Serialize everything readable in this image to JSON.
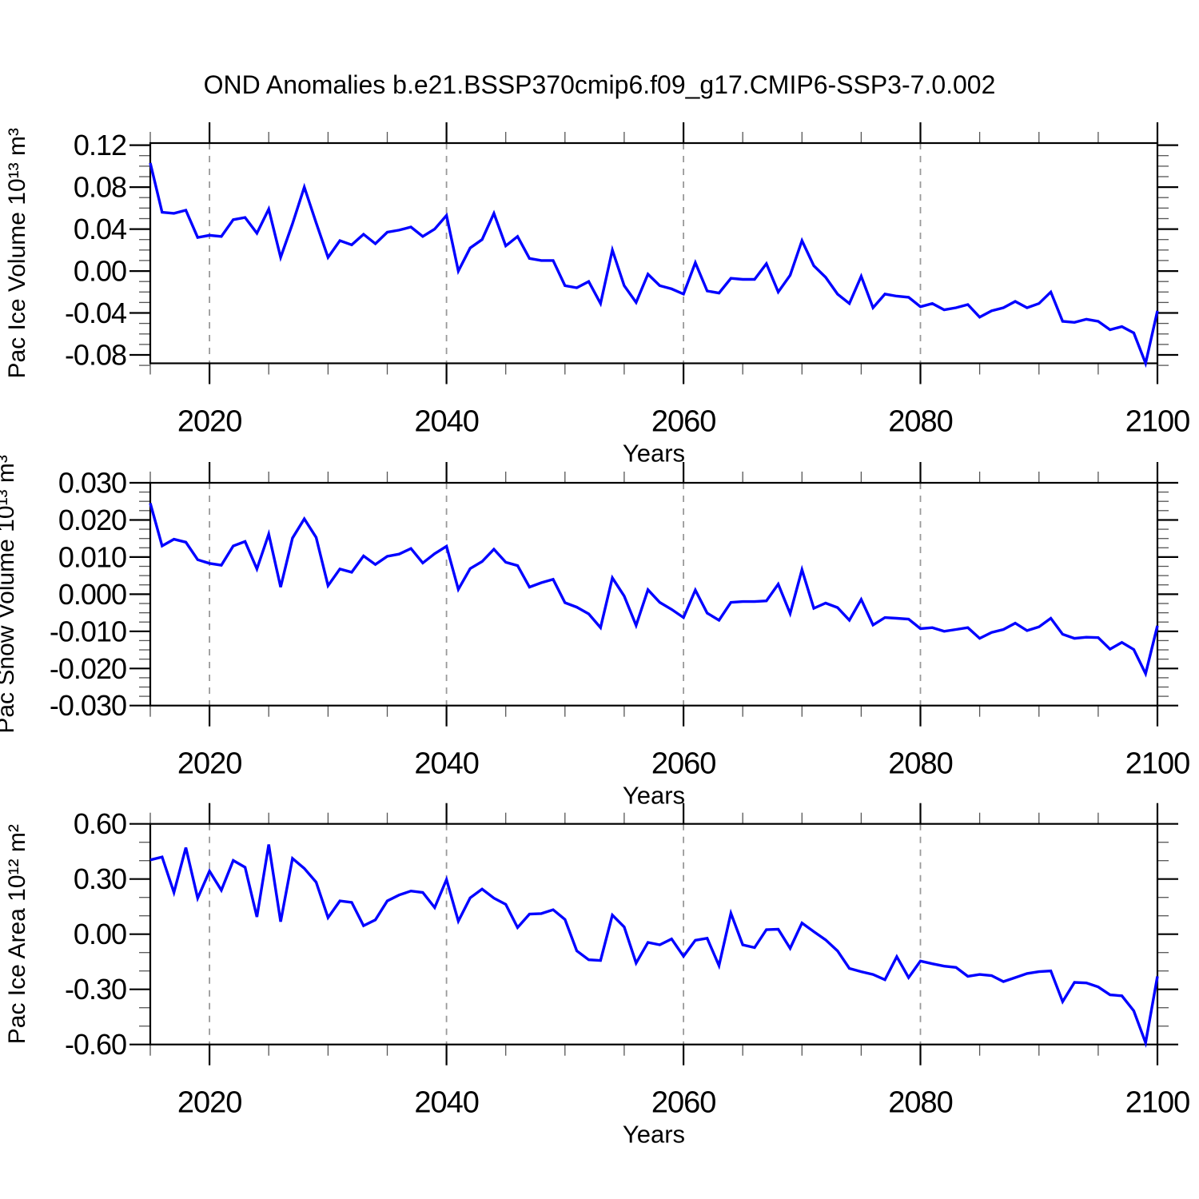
{
  "title": "OND Anomalies b.e21.BSSP370cmip6.f09_g17.CMIP6-SSP3-7.0.002",
  "colors": {
    "line": "#0000ff",
    "axis": "#000000",
    "major_tick": "#000000",
    "minor_tick": "#555555",
    "grid": "#999999",
    "background": "#ffffff",
    "text": "#000000"
  },
  "x_axis": {
    "label": "Years",
    "start": 2015,
    "end": 2100,
    "major_ticks": [
      2020,
      2040,
      2060,
      2080,
      2100
    ],
    "major_labels": [
      "2020",
      "2040",
      "2060",
      "2080",
      "2100"
    ],
    "minor_step": 5,
    "grid_years": [
      2020,
      2040,
      2060,
      2080
    ]
  },
  "chart_data": [
    {
      "type": "line",
      "series_name": "pac-ice-volume-anomaly",
      "ylabel": "Pac Ice Volume 10¹³ m³",
      "xlabel": "Years",
      "ylim": [
        -0.088,
        0.122
      ],
      "y_major_ticks": [
        -0.08,
        -0.04,
        0.0,
        0.04,
        0.08,
        0.12
      ],
      "y_major_labels": [
        "-0.08",
        "-0.04",
        "0.00",
        "0.04",
        "0.08",
        "0.12"
      ],
      "y_minor_step": 0.01,
      "x_start": 2015,
      "x_step": 1,
      "values": [
        0.103,
        0.056,
        0.055,
        0.058,
        0.032,
        0.034,
        0.033,
        0.049,
        0.051,
        0.036,
        0.059,
        0.013,
        0.045,
        0.08,
        0.046,
        0.013,
        0.029,
        0.025,
        0.035,
        0.026,
        0.037,
        0.039,
        0.042,
        0.033,
        0.04,
        0.053,
        0.0,
        0.022,
        0.03,
        0.055,
        0.024,
        0.033,
        0.012,
        0.01,
        0.01,
        -0.014,
        -0.016,
        -0.01,
        -0.031,
        0.02,
        -0.014,
        -0.03,
        -0.003,
        -0.014,
        -0.017,
        -0.022,
        0.008,
        -0.019,
        -0.021,
        -0.007,
        -0.008,
        -0.008,
        0.007,
        -0.02,
        -0.004,
        0.029,
        0.005,
        -0.006,
        -0.022,
        -0.031,
        -0.005,
        -0.035,
        -0.022,
        -0.024,
        -0.025,
        -0.034,
        -0.031,
        -0.037,
        -0.035,
        -0.032,
        -0.044,
        -0.038,
        -0.035,
        -0.029,
        -0.035,
        -0.031,
        -0.02,
        -0.048,
        -0.049,
        -0.046,
        -0.048,
        -0.056,
        -0.053,
        -0.059,
        -0.088,
        -0.038
      ]
    },
    {
      "type": "line",
      "series_name": "pac-snow-volume-anomaly",
      "ylabel": "Pac Snow Volume 10¹³ m³",
      "xlabel": "Years",
      "ylim": [
        -0.03,
        0.03
      ],
      "y_major_ticks": [
        -0.03,
        -0.02,
        -0.01,
        0.0,
        0.01,
        0.02,
        0.03
      ],
      "y_major_labels": [
        "-0.030",
        "-0.020",
        "-0.010",
        "0.000",
        "0.010",
        "0.020",
        "0.030"
      ],
      "y_minor_step": 0.0025,
      "x_start": 2015,
      "x_step": 1,
      "values": [
        0.0245,
        0.013,
        0.0148,
        0.014,
        0.0093,
        0.0083,
        0.0078,
        0.013,
        0.0142,
        0.0068,
        0.0162,
        0.0019,
        0.0151,
        0.0203,
        0.0153,
        0.0023,
        0.0068,
        0.0059,
        0.0103,
        0.008,
        0.0102,
        0.0108,
        0.0123,
        0.0084,
        0.0109,
        0.0129,
        0.0013,
        0.0069,
        0.0088,
        0.0121,
        0.0086,
        0.0077,
        0.0019,
        0.0031,
        0.004,
        -0.0023,
        -0.0035,
        -0.0053,
        -0.009,
        0.0044,
        -0.0005,
        -0.0084,
        0.0012,
        -0.0022,
        -0.0041,
        -0.0063,
        0.0011,
        -0.0051,
        -0.007,
        -0.0022,
        -0.002,
        -0.002,
        -0.0018,
        0.0027,
        -0.0052,
        0.0066,
        -0.0038,
        -0.0024,
        -0.0036,
        -0.007,
        -0.0014,
        -0.0083,
        -0.0063,
        -0.0065,
        -0.0067,
        -0.0093,
        -0.009,
        -0.01,
        -0.0095,
        -0.009,
        -0.0119,
        -0.0103,
        -0.0095,
        -0.0078,
        -0.0098,
        -0.0088,
        -0.0065,
        -0.0108,
        -0.0119,
        -0.0116,
        -0.0117,
        -0.0148,
        -0.013,
        -0.0149,
        -0.0214,
        -0.0085
      ]
    },
    {
      "type": "line",
      "series_name": "pac-ice-area-anomaly",
      "ylabel": "Pac Ice Area 10¹² m²",
      "xlabel": "Years",
      "ylim": [
        -0.6,
        0.6
      ],
      "y_major_ticks": [
        -0.6,
        -0.3,
        0.0,
        0.3,
        0.6
      ],
      "y_major_labels": [
        "-0.60",
        "-0.30",
        "0.00",
        "0.30",
        "0.60"
      ],
      "y_minor_step": 0.1,
      "x_start": 2015,
      "x_step": 1,
      "values": [
        0.404,
        0.42,
        0.227,
        0.471,
        0.196,
        0.343,
        0.239,
        0.401,
        0.364,
        0.094,
        0.488,
        0.068,
        0.412,
        0.358,
        0.283,
        0.09,
        0.181,
        0.173,
        0.046,
        0.078,
        0.181,
        0.213,
        0.235,
        0.227,
        0.145,
        0.297,
        0.071,
        0.198,
        0.245,
        0.196,
        0.162,
        0.036,
        0.109,
        0.112,
        0.133,
        0.08,
        -0.091,
        -0.139,
        -0.143,
        0.104,
        0.039,
        -0.157,
        -0.045,
        -0.058,
        -0.026,
        -0.12,
        -0.033,
        -0.022,
        -0.171,
        0.114,
        -0.058,
        -0.073,
        0.025,
        0.027,
        -0.077,
        0.061,
        0.014,
        -0.031,
        -0.091,
        -0.186,
        -0.204,
        -0.219,
        -0.248,
        -0.122,
        -0.236,
        -0.146,
        -0.161,
        -0.174,
        -0.181,
        -0.229,
        -0.219,
        -0.225,
        -0.258,
        -0.236,
        -0.214,
        -0.204,
        -0.2,
        -0.367,
        -0.262,
        -0.265,
        -0.287,
        -0.33,
        -0.335,
        -0.417,
        -0.591,
        -0.229
      ]
    }
  ]
}
